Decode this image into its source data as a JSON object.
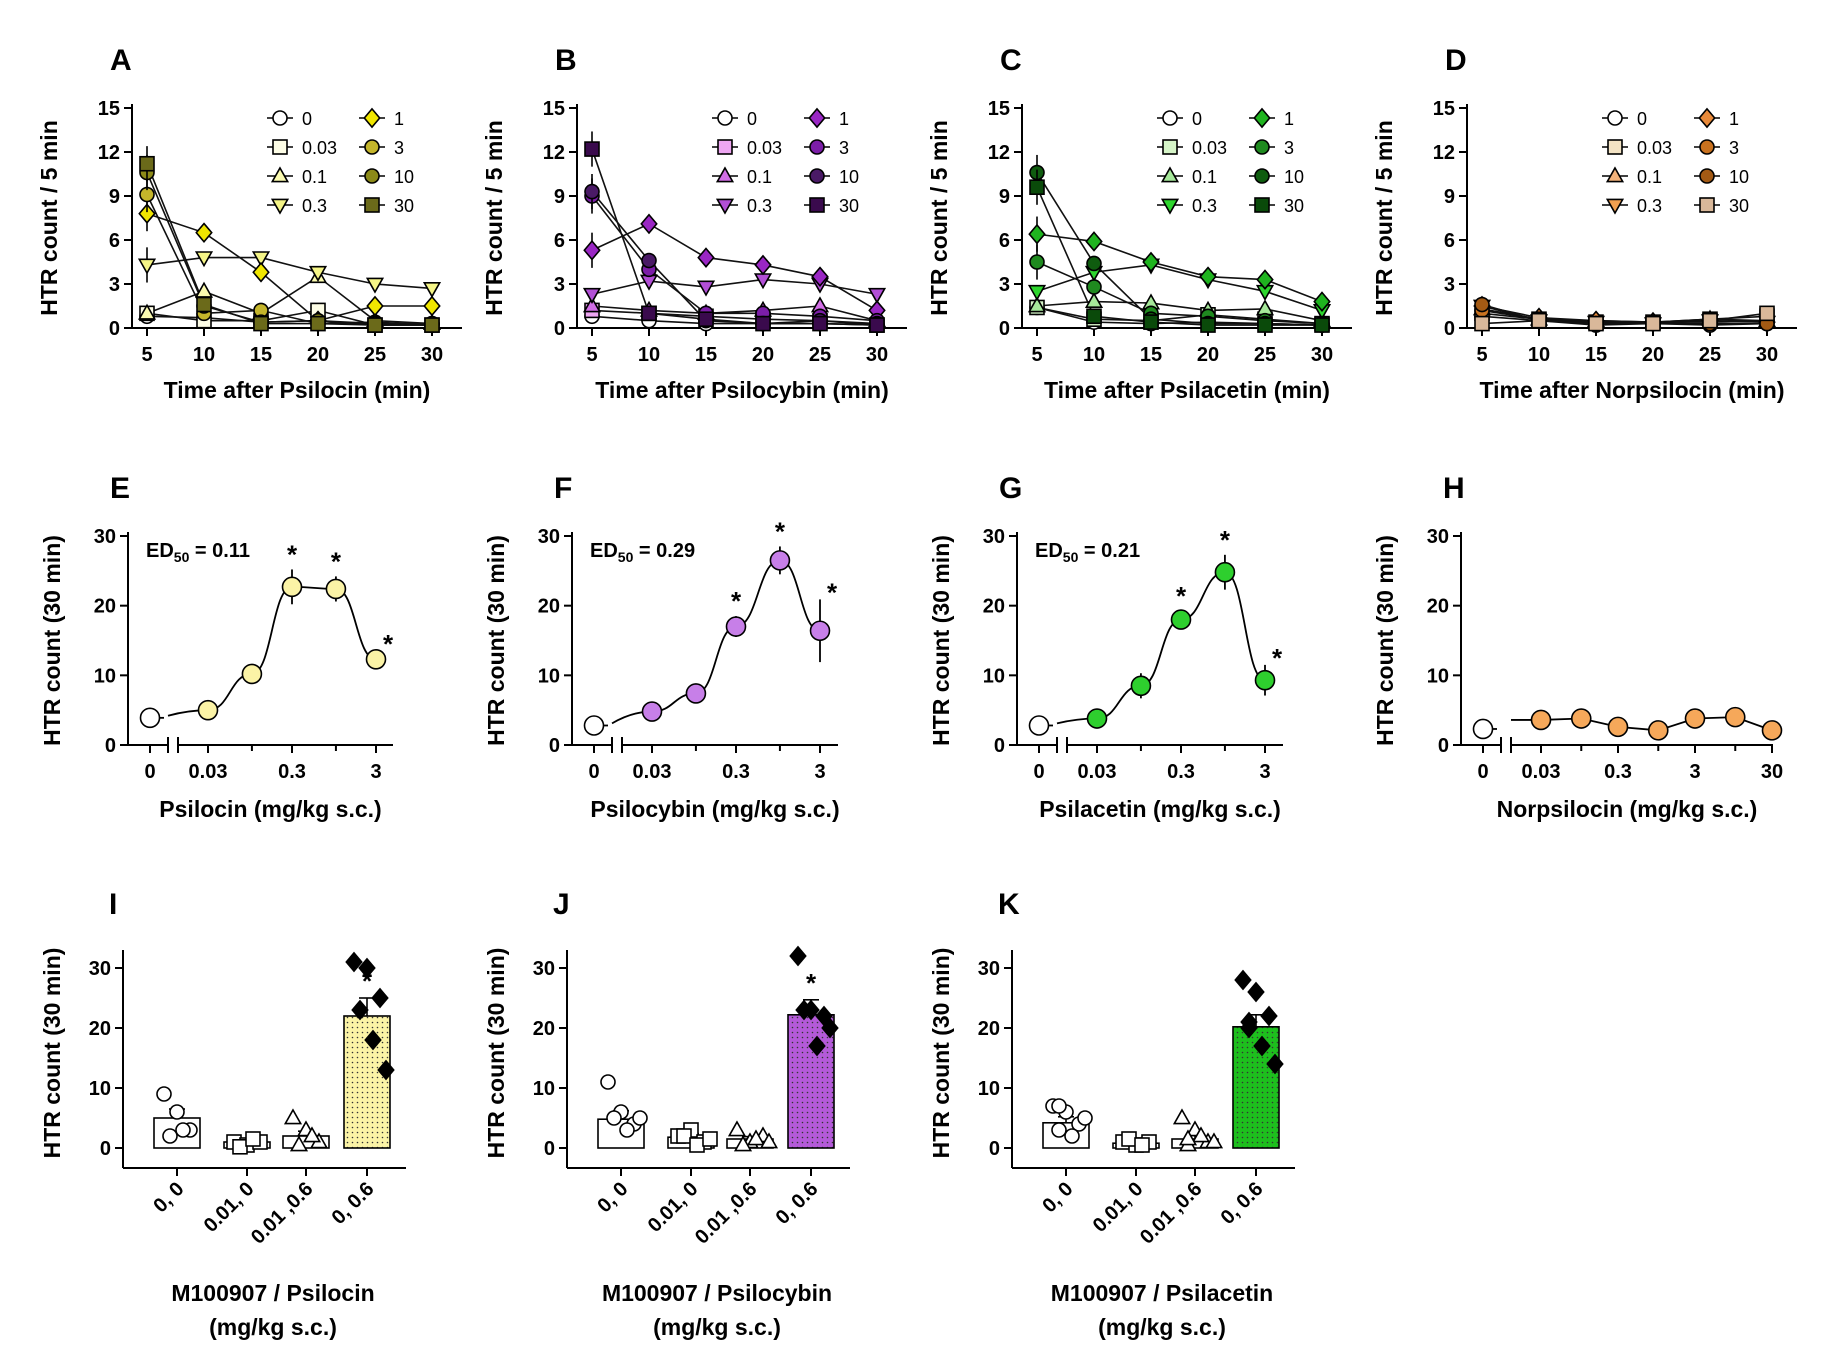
{
  "colors": {
    "psilocin": [
      "#ffffff",
      "#fdfde6",
      "#fbfbb0",
      "#f5f587",
      "#f0e600",
      "#c4b52b",
      "#8c8a18",
      "#6b6a1a"
    ],
    "psilocybin": [
      "#ffffff",
      "#eea6f2",
      "#d26ee6",
      "#b24fd6",
      "#9a27c4",
      "#7c1ea8",
      "#4a1a66",
      "#3a0a4d"
    ],
    "psilacetin": [
      "#ffffff",
      "#d6f5c8",
      "#a6e89a",
      "#2ed62e",
      "#1fb41f",
      "#1f8a1f",
      "#0f5c0f",
      "#0a4a0a"
    ],
    "norpsilocin": [
      "#ffffff",
      "#f3e3c4",
      "#f2b27a",
      "#f2a050",
      "#e98a3a",
      "#c9721f",
      "#a35a14",
      "#d9b89a"
    ],
    "dr_psilocin": "#fbf3a6",
    "dr_psilocybin": "#c77fe8",
    "dr_psilacetin": "#2ecf2e",
    "dr_norpsilocin": "#f6a85a"
  },
  "chart_data": [
    {
      "panel": "A",
      "type": "line",
      "xlabel": "Time after Psilocin (min)",
      "ylabel": "HTR count / 5 min",
      "x": [
        5,
        10,
        15,
        20,
        25,
        30
      ],
      "ylim": [
        0,
        15
      ],
      "yticks": [
        "0",
        "3",
        "6",
        "9",
        "12",
        "15"
      ],
      "legend_placement": "top-right",
      "series": [
        {
          "name": "0",
          "marker": "circle",
          "values": [
            0.8,
            0.7,
            0.4,
            0.5,
            0.2,
            0.3
          ]
        },
        {
          "name": "0.03",
          "marker": "square",
          "values": [
            1.0,
            0.5,
            0.5,
            1.2,
            0.2,
            0.2
          ]
        },
        {
          "name": "0.1",
          "marker": "triangle-up",
          "values": [
            1.0,
            2.5,
            1.0,
            3.5,
            0.5,
            0.3
          ]
        },
        {
          "name": "0.3",
          "marker": "triangle-down",
          "values": [
            4.3,
            4.8,
            4.8,
            3.8,
            3.0,
            2.7
          ]
        },
        {
          "name": "1",
          "marker": "diamond",
          "values": [
            7.8,
            6.5,
            3.8,
            0.5,
            1.5,
            1.5
          ]
        },
        {
          "name": "3",
          "marker": "circle",
          "values": [
            9.1,
            1.0,
            1.2,
            0.3,
            0.4,
            0.2
          ]
        },
        {
          "name": "10",
          "marker": "circle",
          "values": [
            10.6,
            1.5,
            0.4,
            0.5,
            0.3,
            0.3
          ]
        },
        {
          "name": "30",
          "marker": "square",
          "values": [
            11.2,
            1.6,
            0.3,
            0.3,
            0.2,
            0.2
          ]
        }
      ]
    },
    {
      "panel": "B",
      "type": "line",
      "xlabel": "Time after Psilocybin (min)",
      "ylabel": "HTR count / 5 min",
      "x": [
        5,
        10,
        15,
        20,
        25,
        30
      ],
      "ylim": [
        0,
        15
      ],
      "yticks": [
        "0",
        "3",
        "6",
        "9",
        "12",
        "15"
      ],
      "legend_placement": "top-right",
      "series": [
        {
          "name": "0",
          "marker": "circle",
          "values": [
            0.8,
            0.5,
            0.3,
            0.3,
            0.3,
            0.2
          ]
        },
        {
          "name": "0.03",
          "marker": "square",
          "values": [
            1.2,
            1.0,
            0.8,
            0.6,
            0.5,
            0.2
          ]
        },
        {
          "name": "0.1",
          "marker": "triangle-up",
          "values": [
            1.5,
            1.2,
            1.0,
            1.2,
            1.5,
            0.5
          ]
        },
        {
          "name": "0.3",
          "marker": "triangle-down",
          "values": [
            2.3,
            3.2,
            2.8,
            3.3,
            3.0,
            2.3
          ]
        },
        {
          "name": "1",
          "marker": "diamond",
          "values": [
            5.3,
            7.1,
            4.8,
            4.3,
            3.5,
            1.2
          ]
        },
        {
          "name": "3",
          "marker": "circle",
          "values": [
            9.0,
            4.0,
            1.0,
            1.0,
            0.8,
            0.5
          ]
        },
        {
          "name": "10",
          "marker": "circle",
          "values": [
            9.3,
            4.6,
            0.5,
            0.3,
            0.5,
            0.3
          ]
        },
        {
          "name": "30",
          "marker": "square",
          "values": [
            12.2,
            1.0,
            0.6,
            0.3,
            0.3,
            0.2
          ]
        }
      ]
    },
    {
      "panel": "C",
      "type": "line",
      "xlabel": "Time after Psilacetin (min)",
      "ylabel": "HTR count / 5 min",
      "x": [
        5,
        10,
        15,
        20,
        25,
        30
      ],
      "ylim": [
        0,
        15
      ],
      "yticks": [
        "0",
        "3",
        "6",
        "9",
        "12",
        "15"
      ],
      "legend_placement": "top-right",
      "series": [
        {
          "name": "0",
          "marker": "circle",
          "values": [
            1.4,
            0.4,
            0.3,
            0.4,
            0.3,
            0.2
          ]
        },
        {
          "name": "0.03",
          "marker": "square",
          "values": [
            1.4,
            0.6,
            0.5,
            0.9,
            0.6,
            0.3
          ]
        },
        {
          "name": "0.1",
          "marker": "triangle-up",
          "values": [
            1.5,
            1.8,
            1.7,
            1.2,
            1.3,
            0.5
          ]
        },
        {
          "name": "0.3",
          "marker": "triangle-down",
          "values": [
            2.5,
            3.8,
            4.3,
            3.3,
            2.5,
            1.2
          ]
        },
        {
          "name": "1",
          "marker": "diamond",
          "values": [
            6.4,
            5.9,
            4.5,
            3.5,
            3.3,
            1.8
          ]
        },
        {
          "name": "3",
          "marker": "circle",
          "values": [
            4.5,
            2.8,
            1.0,
            0.8,
            0.5,
            0.3
          ]
        },
        {
          "name": "10",
          "marker": "circle",
          "values": [
            10.6,
            4.4,
            0.6,
            0.3,
            0.3,
            0.2
          ]
        },
        {
          "name": "30",
          "marker": "square",
          "values": [
            9.6,
            0.8,
            0.4,
            0.2,
            0.2,
            0.2
          ]
        }
      ]
    },
    {
      "panel": "D",
      "type": "line",
      "xlabel": "Time after Norpsilocin (min)",
      "ylabel": "HTR count / 5 min",
      "x": [
        5,
        10,
        15,
        20,
        25,
        30
      ],
      "ylim": [
        0,
        15
      ],
      "yticks": [
        "0",
        "3",
        "6",
        "9",
        "12",
        "15"
      ],
      "legend_placement": "top-right",
      "series": [
        {
          "name": "0",
          "marker": "circle",
          "values": [
            0.8,
            0.5,
            0.2,
            0.3,
            0.2,
            0.3
          ]
        },
        {
          "name": "0.03",
          "marker": "square",
          "values": [
            1.0,
            0.6,
            0.4,
            0.4,
            0.6,
            0.8
          ]
        },
        {
          "name": "0.1",
          "marker": "triangle-up",
          "values": [
            1.3,
            0.6,
            0.5,
            0.4,
            0.6,
            0.5
          ]
        },
        {
          "name": "0.3",
          "marker": "triangle-down",
          "values": [
            1.5,
            0.5,
            0.4,
            0.3,
            0.5,
            0.4
          ]
        },
        {
          "name": "1",
          "marker": "diamond",
          "values": [
            1.5,
            0.7,
            0.5,
            0.4,
            0.5,
            0.4
          ]
        },
        {
          "name": "3",
          "marker": "circle",
          "values": [
            1.2,
            0.6,
            0.3,
            0.4,
            0.4,
            0.5
          ]
        },
        {
          "name": "10",
          "marker": "circle",
          "values": [
            1.6,
            0.5,
            0.3,
            0.3,
            0.3,
            0.3
          ]
        },
        {
          "name": "30",
          "marker": "square",
          "values": [
            0.3,
            0.5,
            0.3,
            0.3,
            0.5,
            1.0
          ]
        }
      ]
    },
    {
      "panel": "E",
      "type": "scatter",
      "xlabel": "Psilocin (mg/kg s.c.)",
      "ylabel": "HTR count (30 min)",
      "ed50": "ED50 = 0.11",
      "ylim": [
        0,
        30
      ],
      "yticks": [
        "0",
        "10",
        "20",
        "30"
      ],
      "xticks": [
        "0",
        "0.03",
        "0.3",
        "3"
      ],
      "x": [
        0,
        0.03,
        0.1,
        0.3,
        1,
        3
      ],
      "values": [
        3.9,
        5.0,
        10.2,
        22.7,
        22.4,
        12.3
      ],
      "errors": [
        0.4,
        0.6,
        1.0,
        2.5,
        1.8,
        1.2
      ],
      "significant": [
        false,
        false,
        false,
        true,
        true,
        true
      ]
    },
    {
      "panel": "F",
      "type": "scatter",
      "xlabel": "Psilocybin (mg/kg s.c.)",
      "ylabel": "HTR count (30 min)",
      "ed50": "ED50 = 0.29",
      "ylim": [
        0,
        30
      ],
      "yticks": [
        "0",
        "10",
        "20",
        "30"
      ],
      "xticks": [
        "0",
        "0.03",
        "0.3",
        "3"
      ],
      "x": [
        0,
        0.03,
        0.1,
        0.3,
        1,
        3
      ],
      "values": [
        2.8,
        4.8,
        7.4,
        17.0,
        26.5,
        16.4
      ],
      "errors": [
        0.5,
        0.7,
        1.2,
        1.5,
        2.0,
        4.5
      ],
      "significant": [
        false,
        false,
        false,
        true,
        true,
        true
      ]
    },
    {
      "panel": "G",
      "type": "scatter",
      "xlabel": "Psilacetin (mg/kg s.c.)",
      "ylabel": "HTR count (30 min)",
      "ed50": "ED50 = 0.21",
      "ylim": [
        0,
        30
      ],
      "yticks": [
        "0",
        "10",
        "20",
        "30"
      ],
      "xticks": [
        "0",
        "0.03",
        "0.3",
        "3"
      ],
      "x": [
        0,
        0.03,
        0.1,
        0.3,
        1,
        3
      ],
      "values": [
        2.8,
        3.8,
        8.5,
        18.0,
        24.8,
        9.3
      ],
      "errors": [
        0.4,
        0.6,
        1.8,
        1.2,
        2.5,
        2.2
      ],
      "significant": [
        false,
        false,
        false,
        true,
        true,
        true
      ]
    },
    {
      "panel": "H",
      "type": "scatter",
      "xlabel": "Norpsilocin (mg/kg s.c.)",
      "ylabel": "HTR count (30 min)",
      "ylim": [
        0,
        30
      ],
      "yticks": [
        "0",
        "10",
        "20",
        "30"
      ],
      "xticks": [
        "0",
        "0.03",
        "0.3",
        "3",
        "30"
      ],
      "x": [
        0,
        0.03,
        0.1,
        0.3,
        1,
        3,
        10,
        30
      ],
      "values": [
        2.3,
        3.6,
        3.8,
        2.6,
        2.1,
        3.8,
        4.0,
        2.1
      ],
      "errors": [
        0.4,
        0.6,
        0.7,
        0.6,
        0.5,
        0.8,
        1.4,
        0.5
      ],
      "significant": [
        false,
        false,
        false,
        false,
        false,
        false,
        false,
        false
      ]
    },
    {
      "panel": "I",
      "type": "bar",
      "xlabel": "M100907 / Psilocin",
      "xlabel2": "(mg/kg s.c.)",
      "ylabel": "HTR count (30 min)",
      "categories": [
        "0, 0",
        "0.01, 0",
        "0.01 ,0.6",
        "0, 0.6"
      ],
      "ylim": [
        0,
        30
      ],
      "yticks": [
        "0",
        "10",
        "20",
        "30"
      ],
      "values": [
        5.0,
        1.0,
        2.0,
        22.0
      ],
      "errors": [
        1.5,
        0.5,
        0.8,
        3.0
      ],
      "points": [
        [
          9,
          6,
          3,
          2,
          3
        ],
        [
          1,
          0.5,
          1,
          0.2,
          1.5
        ],
        [
          5,
          3,
          1,
          0.5,
          2
        ],
        [
          31,
          30,
          25,
          23,
          18,
          13
        ]
      ],
      "significant": [
        false,
        false,
        false,
        true
      ]
    },
    {
      "panel": "J",
      "type": "bar",
      "xlabel": "M100907 / Psilocybin",
      "xlabel2": "(mg/kg s.c.)",
      "ylabel": "HTR count (30 min)",
      "categories": [
        "0, 0",
        "0.01, 0",
        "0.01 ,0.6",
        "0, 0.6"
      ],
      "ylim": [
        0,
        30
      ],
      "yticks": [
        "0",
        "10",
        "20",
        "30"
      ],
      "values": [
        4.8,
        1.8,
        1.5,
        22.2
      ],
      "errors": [
        1.4,
        0.6,
        0.4,
        2.5
      ],
      "points": [
        [
          11,
          6,
          4,
          5,
          3,
          5
        ],
        [
          2,
          3,
          1,
          2,
          0.5,
          1.5
        ],
        [
          3,
          1,
          2,
          0.5,
          1.5,
          1
        ],
        [
          32,
          23,
          22,
          23,
          17,
          20
        ]
      ],
      "significant": [
        false,
        false,
        false,
        true
      ]
    },
    {
      "panel": "K",
      "type": "bar",
      "xlabel": "M100907 / Psilacetin",
      "xlabel2": "(mg/kg s.c.)",
      "ylabel": "HTR count (30 min)",
      "categories": [
        "0, 0",
        "0.01, 0",
        "0.01 ,0.6",
        "0, 0.6"
      ],
      "ylim": [
        0,
        30
      ],
      "yticks": [
        "0",
        "10",
        "20",
        "30"
      ],
      "values": [
        4.2,
        0.8,
        1.5,
        20.2
      ],
      "errors": [
        1.0,
        0.4,
        0.6,
        2.0
      ],
      "points": [
        [
          7,
          6,
          4,
          3,
          2,
          5,
          7
        ],
        [
          1,
          0.5,
          1,
          1.5,
          0.5
        ],
        [
          5,
          3,
          1,
          0.5,
          2,
          1,
          1.5
        ],
        [
          28,
          26,
          22,
          20,
          17,
          14,
          21
        ]
      ],
      "significant": [
        false,
        false,
        false,
        true
      ]
    }
  ]
}
